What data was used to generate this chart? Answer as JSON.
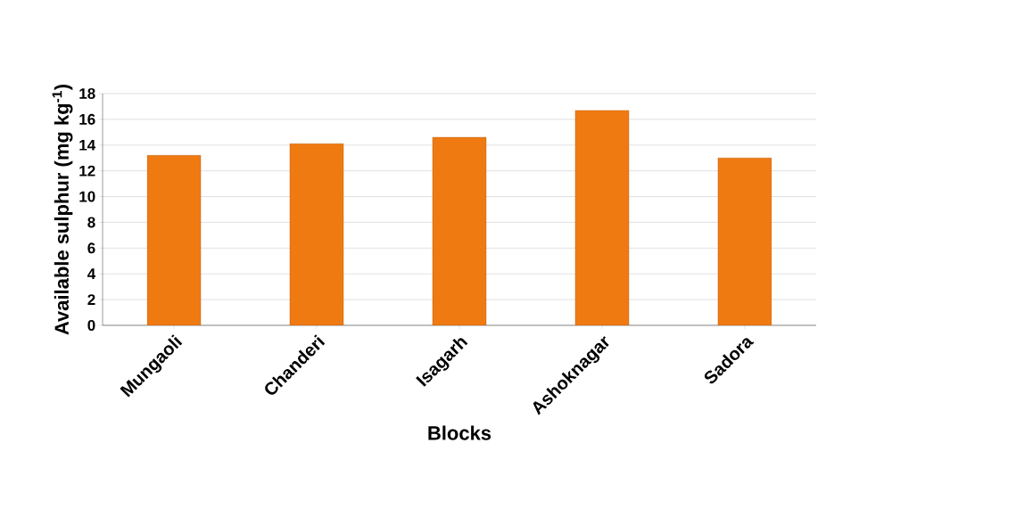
{
  "chart_data": {
    "type": "bar",
    "xlabel": "Blocks",
    "ylabel": "Available sulphur (mg kg$^{-1}$)",
    "categories": [
      "Mungaoli",
      "Chanderi",
      "Isagarh",
      "Ashoknagar",
      "Sadora"
    ],
    "values": [
      13.2,
      14.1,
      14.6,
      16.7,
      13.0
    ],
    "color": "#f07a12",
    "ylim": [
      0,
      18
    ],
    "yticks": [
      0,
      2,
      4,
      6,
      8,
      10,
      12,
      14,
      16,
      18
    ],
    "grid": "y"
  }
}
